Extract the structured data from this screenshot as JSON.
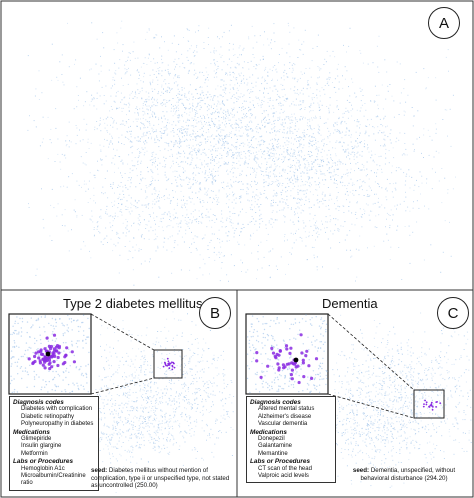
{
  "panels": {
    "a": {
      "badge": "A"
    },
    "b": {
      "badge": "B",
      "title": "Type 2 diabetes mellitus",
      "legend": [
        {
          "heading": "Diagnosis codes",
          "items": [
            "Diabetes with complication",
            "Diabetic retinopathy",
            "Polyneuropathy in diabetes"
          ]
        },
        {
          "heading": "Medications",
          "items": [
            "Glimepiride",
            "Insulin glargine",
            "Metformin"
          ]
        },
        {
          "heading": "Labs or Procedures",
          "items": [
            "Hemoglobin A1c",
            "Microalbumin/Creatinine ratio"
          ]
        }
      ],
      "seed_label": "seed:",
      "seed_text": "Diabetes mellitus without mention of complication, type ii or unspecified type, not stated as uncontrolled (250.00)"
    },
    "c": {
      "badge": "C",
      "title": "Dementia",
      "legend": [
        {
          "heading": "Diagnosis codes",
          "items": [
            "Altered mental status",
            "Alzheimer's disease",
            "Vascular dementia"
          ]
        },
        {
          "heading": "Medications",
          "items": [
            "Donepezil",
            "Galantamine",
            "Memantine"
          ]
        },
        {
          "heading": "Labs or Procedures",
          "items": [
            "CT scan of the head",
            "Valproic acid levels"
          ]
        }
      ],
      "seed_label": "seed:",
      "seed_text": "Dementia, unspecified, without behavioral disturbance (294.20)"
    }
  },
  "colors": {
    "points": "#a9c9ec",
    "highlight": "#8a2be2",
    "seed": "#000000",
    "border": "#333333"
  }
}
